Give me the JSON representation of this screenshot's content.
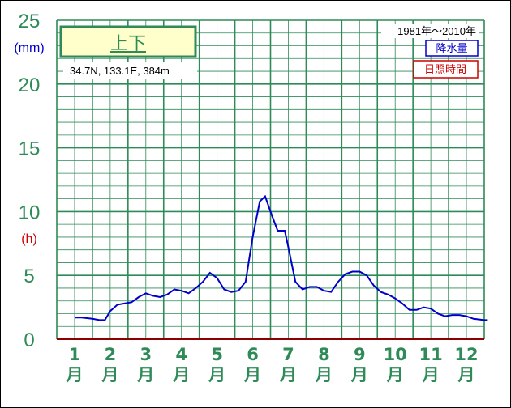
{
  "chart_data": {
    "type": "line",
    "title": "上下",
    "location_label": "34.7N,  133.1E,  384m",
    "period_label": "1981年〜2010年",
    "y_unit_precip": "(mm)",
    "y_unit_sunshine": "(h)",
    "y_ticks": [
      "0",
      "5",
      "10",
      "15",
      "20",
      "25"
    ],
    "ylim": [
      0,
      25
    ],
    "grid": true,
    "legend_position": "top-right",
    "legend": [
      {
        "label": "降水量",
        "color": "#0000cc"
      },
      {
        "label": "日照時間",
        "color": "#cc0000"
      }
    ],
    "month_numbers": [
      "1",
      "2",
      "3",
      "4",
      "5",
      "6",
      "7",
      "8",
      "9",
      "10",
      "11",
      "12"
    ],
    "month_suffix": "月",
    "series": [
      {
        "name": "降水量",
        "color": "#0000cc",
        "x": [
          1.0,
          1.2,
          1.5,
          1.7,
          1.85,
          2.0,
          2.2,
          2.4,
          2.6,
          2.8,
          3.0,
          3.2,
          3.4,
          3.6,
          3.8,
          4.0,
          4.2,
          4.4,
          4.6,
          4.8,
          5.0,
          5.2,
          5.4,
          5.6,
          5.8,
          6.0,
          6.2,
          6.35,
          6.5,
          6.7,
          6.9,
          7.0,
          7.2,
          7.4,
          7.6,
          7.8,
          8.0,
          8.2,
          8.4,
          8.6,
          8.8,
          9.0,
          9.2,
          9.4,
          9.6,
          9.8,
          10.0,
          10.2,
          10.4,
          10.6,
          10.8,
          11.0,
          11.2,
          11.4,
          11.6,
          11.8,
          12.0,
          12.2,
          12.5,
          12.6
        ],
        "values": [
          1.7,
          1.7,
          1.6,
          1.5,
          1.5,
          2.2,
          2.7,
          2.8,
          2.9,
          3.3,
          3.6,
          3.4,
          3.3,
          3.5,
          3.9,
          3.8,
          3.6,
          4.0,
          4.5,
          5.2,
          4.8,
          3.9,
          3.7,
          3.8,
          4.5,
          8.0,
          10.8,
          11.2,
          10.0,
          8.5,
          8.5,
          7.2,
          4.5,
          3.9,
          4.1,
          4.1,
          3.8,
          3.7,
          4.5,
          5.1,
          5.3,
          5.3,
          5.0,
          4.2,
          3.7,
          3.5,
          3.2,
          2.8,
          2.3,
          2.3,
          2.5,
          2.4,
          2.0,
          1.8,
          1.9,
          1.9,
          1.8,
          1.6,
          1.5,
          1.5
        ]
      }
    ]
  }
}
